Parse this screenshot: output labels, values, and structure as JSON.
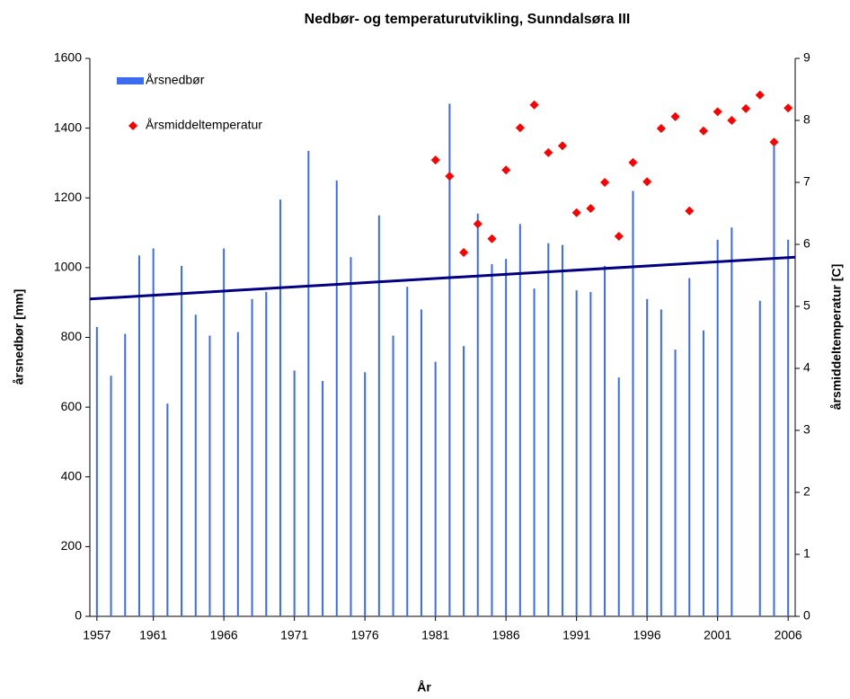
{
  "chart_data": {
    "type": "bar",
    "title": "Nedbør- og temperaturutvikling, Sunndalsøra III",
    "x_label": "År",
    "y_label": "årsnedbør [mm]",
    "y2_label": "årsmiddeltemperatur [C]",
    "categories": [
      "1957",
      null,
      null,
      null,
      "1961",
      null,
      null,
      null,
      null,
      "1966",
      null,
      null,
      null,
      null,
      "1971",
      null,
      null,
      null,
      null,
      "1976",
      null,
      null,
      null,
      null,
      "1981",
      null,
      null,
      null,
      null,
      "1986",
      null,
      null,
      null,
      null,
      "1991",
      null,
      null,
      null,
      null,
      "1996",
      null,
      null,
      null,
      null,
      "2001",
      null,
      null,
      null,
      null,
      "2006"
    ],
    "series": [
      {
        "name": "Årsnedbør",
        "type": "bar",
        "color": "#3b6cf0",
        "values": [
          830,
          690,
          810,
          1035,
          1055,
          610,
          1005,
          865,
          805,
          1055,
          815,
          910,
          930,
          1195,
          705,
          1335,
          675,
          1250,
          1030,
          700,
          1150,
          805,
          945,
          880,
          730,
          1470,
          775,
          1155,
          1010,
          1025,
          1125,
          940,
          1070,
          1065,
          935,
          930,
          1005,
          685,
          1220,
          910,
          880,
          765,
          970,
          820,
          1080,
          1115,
          null,
          905,
          1355,
          1080
        ]
      },
      {
        "name": "Årsmiddeltemperatur",
        "type": "scatter",
        "color": "#ff0000",
        "axis": "y2",
        "values": [
          null,
          null,
          null,
          null,
          null,
          null,
          null,
          null,
          null,
          null,
          null,
          null,
          null,
          null,
          null,
          null,
          null,
          null,
          null,
          null,
          null,
          null,
          null,
          null,
          7.36,
          7.1,
          5.87,
          6.33,
          6.09,
          7.2,
          7.88,
          8.25,
          7.48,
          7.59,
          6.51,
          6.58,
          7.0,
          6.13,
          7.32,
          7.01,
          7.87,
          8.06,
          6.54,
          7.83,
          8.14,
          8.0,
          8.19,
          8.41,
          7.65,
          8.2
        ]
      }
    ],
    "trendline": {
      "color": "#000080",
      "values": [
        910,
        1030
      ]
    },
    "ylim": [
      0,
      1600
    ],
    "yticks": [
      0,
      200,
      400,
      600,
      800,
      1000,
      1200,
      1400,
      1600
    ],
    "y2lim": [
      0,
      9
    ],
    "y2ticks": [
      0,
      1,
      2,
      3,
      4,
      5,
      6,
      7,
      8,
      9
    ],
    "legend": "top-left"
  }
}
